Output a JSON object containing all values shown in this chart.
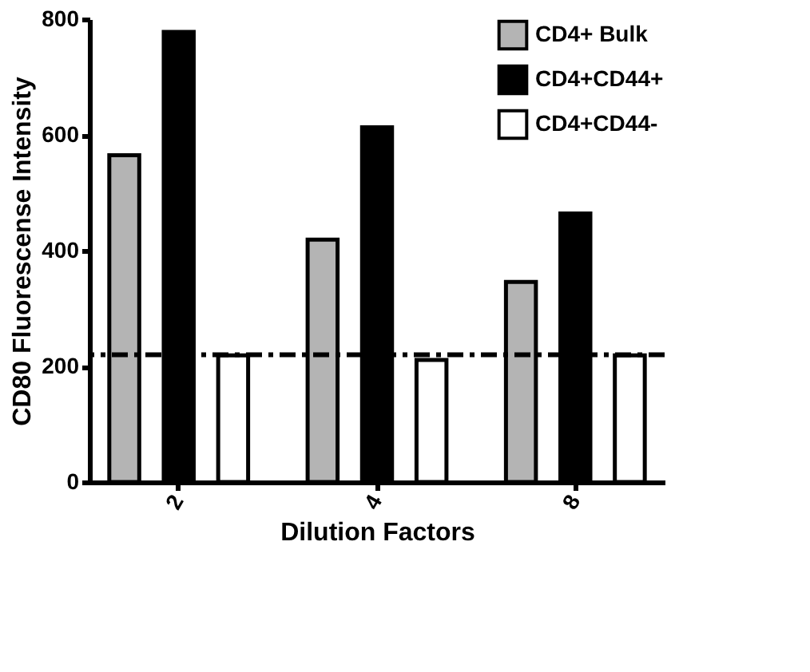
{
  "chart_data": {
    "type": "bar",
    "xlabel": "Dilution Factors",
    "ylabel": "CD80 Fluorescense Intensity",
    "categories": [
      "2",
      "4",
      "8"
    ],
    "series": [
      {
        "name": "CD4+ Bulk",
        "color": "#b4b4b4",
        "values": [
          565,
          419,
          346
        ]
      },
      {
        "name": "CD4+CD44+",
        "color": "#000000",
        "values": [
          778,
          613,
          464
        ]
      },
      {
        "name": "CD4+CD44-",
        "color": "#ffffff",
        "values": [
          219,
          211,
          219
        ]
      }
    ],
    "ylim": [
      0,
      800
    ],
    "yticks": [
      0,
      200,
      400,
      600,
      800
    ],
    "grid": false,
    "legend": "top right",
    "ref_lines": [
      {
        "axis": "y",
        "value": 220,
        "line_style": "dashed",
        "color": "#000000"
      }
    ]
  }
}
